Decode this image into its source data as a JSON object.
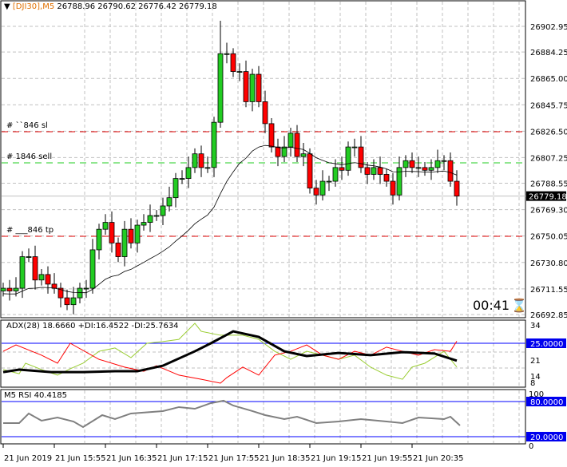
{
  "header": {
    "symbol": "[DJI30],M5",
    "ohlc": "26788.96 26790.62 26776.42 26779.18"
  },
  "price_axis": {
    "labels": [
      "26902.95",
      "26884.25",
      "26865.00",
      "26845.75",
      "26826.50",
      "26807.25",
      "26788.55",
      "26769.30",
      "26750.05",
      "26730.80",
      "26711.55",
      "26692.85"
    ],
    "current": "26779.18",
    "current_value": 26779.18,
    "range": [
      26692.85,
      26902.95
    ]
  },
  "orders": [
    {
      "label": "#    ``846 sl",
      "price": 26826.1,
      "color": "#e00000"
    },
    {
      "label": "#         1846 sell",
      "price": 26803.4,
      "color": "#22cc22"
    },
    {
      "label": "#       ___846 tp",
      "price": 26749.9,
      "color": "#e00000"
    }
  ],
  "timer": "00:41",
  "time_axis": [
    "21 Jun 2019",
    "21 Jun 15:55",
    "21 Jun 16:35",
    "21 Jun 17:15",
    "21 Jun 17:55",
    "21 Jun 18:35",
    "21 Jun 19:15",
    "21 Jun 19:55",
    "21 Jun 20:35"
  ],
  "candles_close": [
    26712,
    26710,
    26712,
    26735,
    26735,
    26718,
    26722,
    26715,
    26712,
    26705,
    26700,
    26705,
    26712,
    26712,
    26740,
    26755,
    26760,
    26745,
    26735,
    26755,
    26745,
    26758,
    26760,
    26765,
    26765,
    26772,
    26778,
    26792,
    26792,
    26800,
    26810,
    26800,
    26800,
    26833,
    26883,
    26883,
    26870,
    26870,
    26848,
    26868,
    26848,
    26832,
    26815,
    26808,
    26815,
    26825,
    26808,
    26810,
    26785,
    26780,
    26790,
    26790,
    26800,
    26798,
    26815,
    26815,
    26800,
    26795,
    26800,
    26795,
    26790,
    26780,
    26800,
    26805,
    26800,
    26800,
    26798,
    26800,
    26805,
    26805,
    26790,
    26779.18
  ],
  "colors": {
    "bull": "#22cc22",
    "bear": "#ff0000",
    "grid": "#c0c0c0",
    "level": "#0000ff",
    "label_bg": "#0000ee"
  },
  "adx": {
    "title": "ADX(28) 18.6660 +DI:16.4522 -DI:25.7634",
    "axis_labels": [
      "34",
      "25.0000",
      "21",
      "14",
      "8"
    ],
    "adx": [
      [
        0,
        14.6
      ],
      [
        2.5,
        15.5
      ],
      [
        7.5,
        14.6
      ],
      [
        12.5,
        14.6
      ],
      [
        17.5,
        14.9
      ],
      [
        21,
        14.9
      ],
      [
        25,
        16.9
      ],
      [
        30,
        22.1
      ],
      [
        32.5,
        25
      ],
      [
        36,
        29.3
      ],
      [
        40,
        27.3
      ],
      [
        44,
        22.1
      ],
      [
        47.5,
        20.4
      ],
      [
        52.5,
        21.5
      ],
      [
        57.5,
        20.7
      ],
      [
        62.5,
        21.8
      ],
      [
        67.5,
        21.3
      ],
      [
        71,
        18.7
      ]
    ],
    "minus_di": [
      [
        0,
        22.1
      ],
      [
        2,
        24.4
      ],
      [
        6,
        20.7
      ],
      [
        8.5,
        17.8
      ],
      [
        10.5,
        25
      ],
      [
        15,
        19.2
      ],
      [
        19,
        16.4
      ],
      [
        22,
        14.9
      ],
      [
        24,
        16.9
      ],
      [
        27.5,
        13.5
      ],
      [
        31,
        12
      ],
      [
        34,
        10.6
      ],
      [
        35,
        12.6
      ],
      [
        37.5,
        16.4
      ],
      [
        40,
        13.5
      ],
      [
        42.5,
        20.7
      ],
      [
        45,
        22.1
      ],
      [
        47.5,
        24.4
      ],
      [
        50,
        20.7
      ],
      [
        52.5,
        19.2
      ],
      [
        55,
        22.1
      ],
      [
        57.5,
        20.7
      ],
      [
        60,
        23.6
      ],
      [
        62.5,
        22.1
      ],
      [
        65,
        20.7
      ],
      [
        67.5,
        22.7
      ],
      [
        70,
        22.1
      ],
      [
        71,
        25.76
      ]
    ],
    "plus_di": [
      [
        0,
        15.5
      ],
      [
        2.5,
        14
      ],
      [
        3.5,
        17.8
      ],
      [
        6,
        15.5
      ],
      [
        8.5,
        13.5
      ],
      [
        10.5,
        15.8
      ],
      [
        12.5,
        17.8
      ],
      [
        15,
        22.1
      ],
      [
        17.5,
        23.3
      ],
      [
        20,
        19.8
      ],
      [
        22.5,
        25
      ],
      [
        25,
        25.6
      ],
      [
        27.5,
        26.4
      ],
      [
        30,
        32.2
      ],
      [
        31,
        29.3
      ],
      [
        34,
        27.9
      ],
      [
        37.5,
        27.9
      ],
      [
        40,
        26.4
      ],
      [
        42.5,
        22.1
      ],
      [
        45,
        19.2
      ],
      [
        47.5,
        22.1
      ],
      [
        50,
        20.7
      ],
      [
        52.5,
        19.2
      ],
      [
        55,
        20.7
      ],
      [
        57.5,
        16.4
      ],
      [
        60,
        13.5
      ],
      [
        62.5,
        12
      ],
      [
        64,
        16.4
      ],
      [
        66,
        17.8
      ],
      [
        69,
        22.1
      ],
      [
        71,
        16.45
      ]
    ]
  },
  "rsi": {
    "title": "M5 RSI  40.4185",
    "axis_labels": [
      "100",
      "80.0000",
      "20.0000",
      "0"
    ],
    "values": [
      [
        0,
        43.2
      ],
      [
        2.5,
        43.2
      ],
      [
        4,
        59.6
      ],
      [
        6,
        47.3
      ],
      [
        8.5,
        52.7
      ],
      [
        11,
        45.9
      ],
      [
        12.5,
        36.4
      ],
      [
        14.5,
        50
      ],
      [
        15.5,
        56.8
      ],
      [
        17.5,
        50
      ],
      [
        20,
        59.6
      ],
      [
        25,
        63.7
      ],
      [
        27.5,
        70.5
      ],
      [
        30,
        67.7
      ],
      [
        32.5,
        77.3
      ],
      [
        34.5,
        81.4
      ],
      [
        36,
        73.2
      ],
      [
        39,
        63.7
      ],
      [
        41,
        56.8
      ],
      [
        44,
        50
      ],
      [
        46,
        54.1
      ],
      [
        49,
        43.2
      ],
      [
        52.5,
        45.9
      ],
      [
        56,
        50
      ],
      [
        60,
        45.9
      ],
      [
        62.5,
        43.2
      ],
      [
        65,
        52.7
      ],
      [
        69,
        50
      ],
      [
        70,
        54.1
      ],
      [
        71.5,
        39.1
      ]
    ]
  }
}
